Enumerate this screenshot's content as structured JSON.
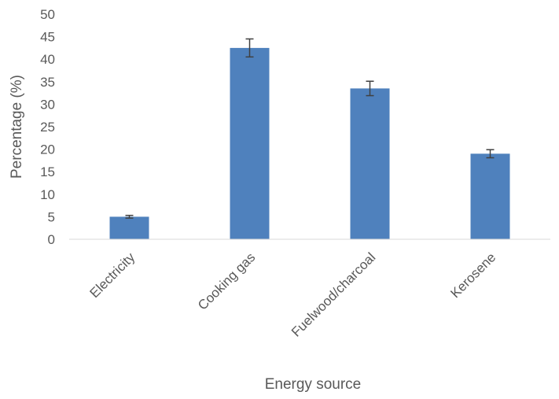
{
  "chart_data": {
    "type": "bar",
    "categories": [
      "Electricity",
      "Cooking gas",
      "Fuelwood/charcoal",
      "Kerosene"
    ],
    "values": [
      5.0,
      42.5,
      33.5,
      19.0
    ],
    "error": [
      0.3,
      2.0,
      1.6,
      0.9
    ],
    "xlabel": "Energy source",
    "ylabel": "Percentage (%)",
    "ylim": [
      0,
      50
    ],
    "yticks": [
      0,
      5,
      10,
      15,
      20,
      25,
      30,
      35,
      40,
      45,
      50
    ],
    "bar_color": "#4F81BD",
    "error_color": "#404040",
    "grid": false
  }
}
